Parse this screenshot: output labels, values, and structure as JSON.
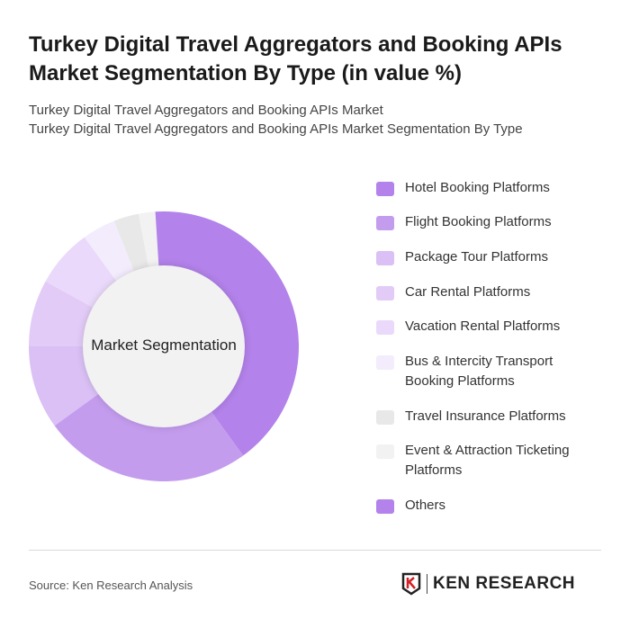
{
  "title": "Turkey Digital Travel Aggregators and Booking APIs Market Segmentation By Type (in value %)",
  "subtitle_line1": "Turkey Digital Travel Aggregators and Booking APIs Market",
  "subtitle_line2": "Turkey Digital Travel Aggregators and Booking APIs Market Segmentation By Type",
  "chart_data": {
    "type": "pie",
    "variant": "donut",
    "center_label": "Market Segmentation",
    "legend_position": "right",
    "categories": [
      "Hotel Booking Platforms",
      "Flight Booking Platforms",
      "Package Tour Platforms",
      "Car Rental Platforms",
      "Vacation Rental Platforms",
      "Bus & Intercity Transport Booking Platforms",
      "Travel Insurance Platforms",
      "Event & Attraction Ticketing Platforms",
      "Others"
    ],
    "values": [
      40,
      25,
      10,
      8,
      7,
      4,
      3,
      2,
      1
    ],
    "colors": [
      "#b382ea",
      "#c49cee",
      "#dac0f5",
      "#e2cbf7",
      "#ead9fa",
      "#f3ecfc",
      "#e8e8e8",
      "#f2f2f2",
      "#b382ea"
    ]
  },
  "source": "Source: Ken Research Analysis",
  "logo_text": "KEN RESEARCH"
}
